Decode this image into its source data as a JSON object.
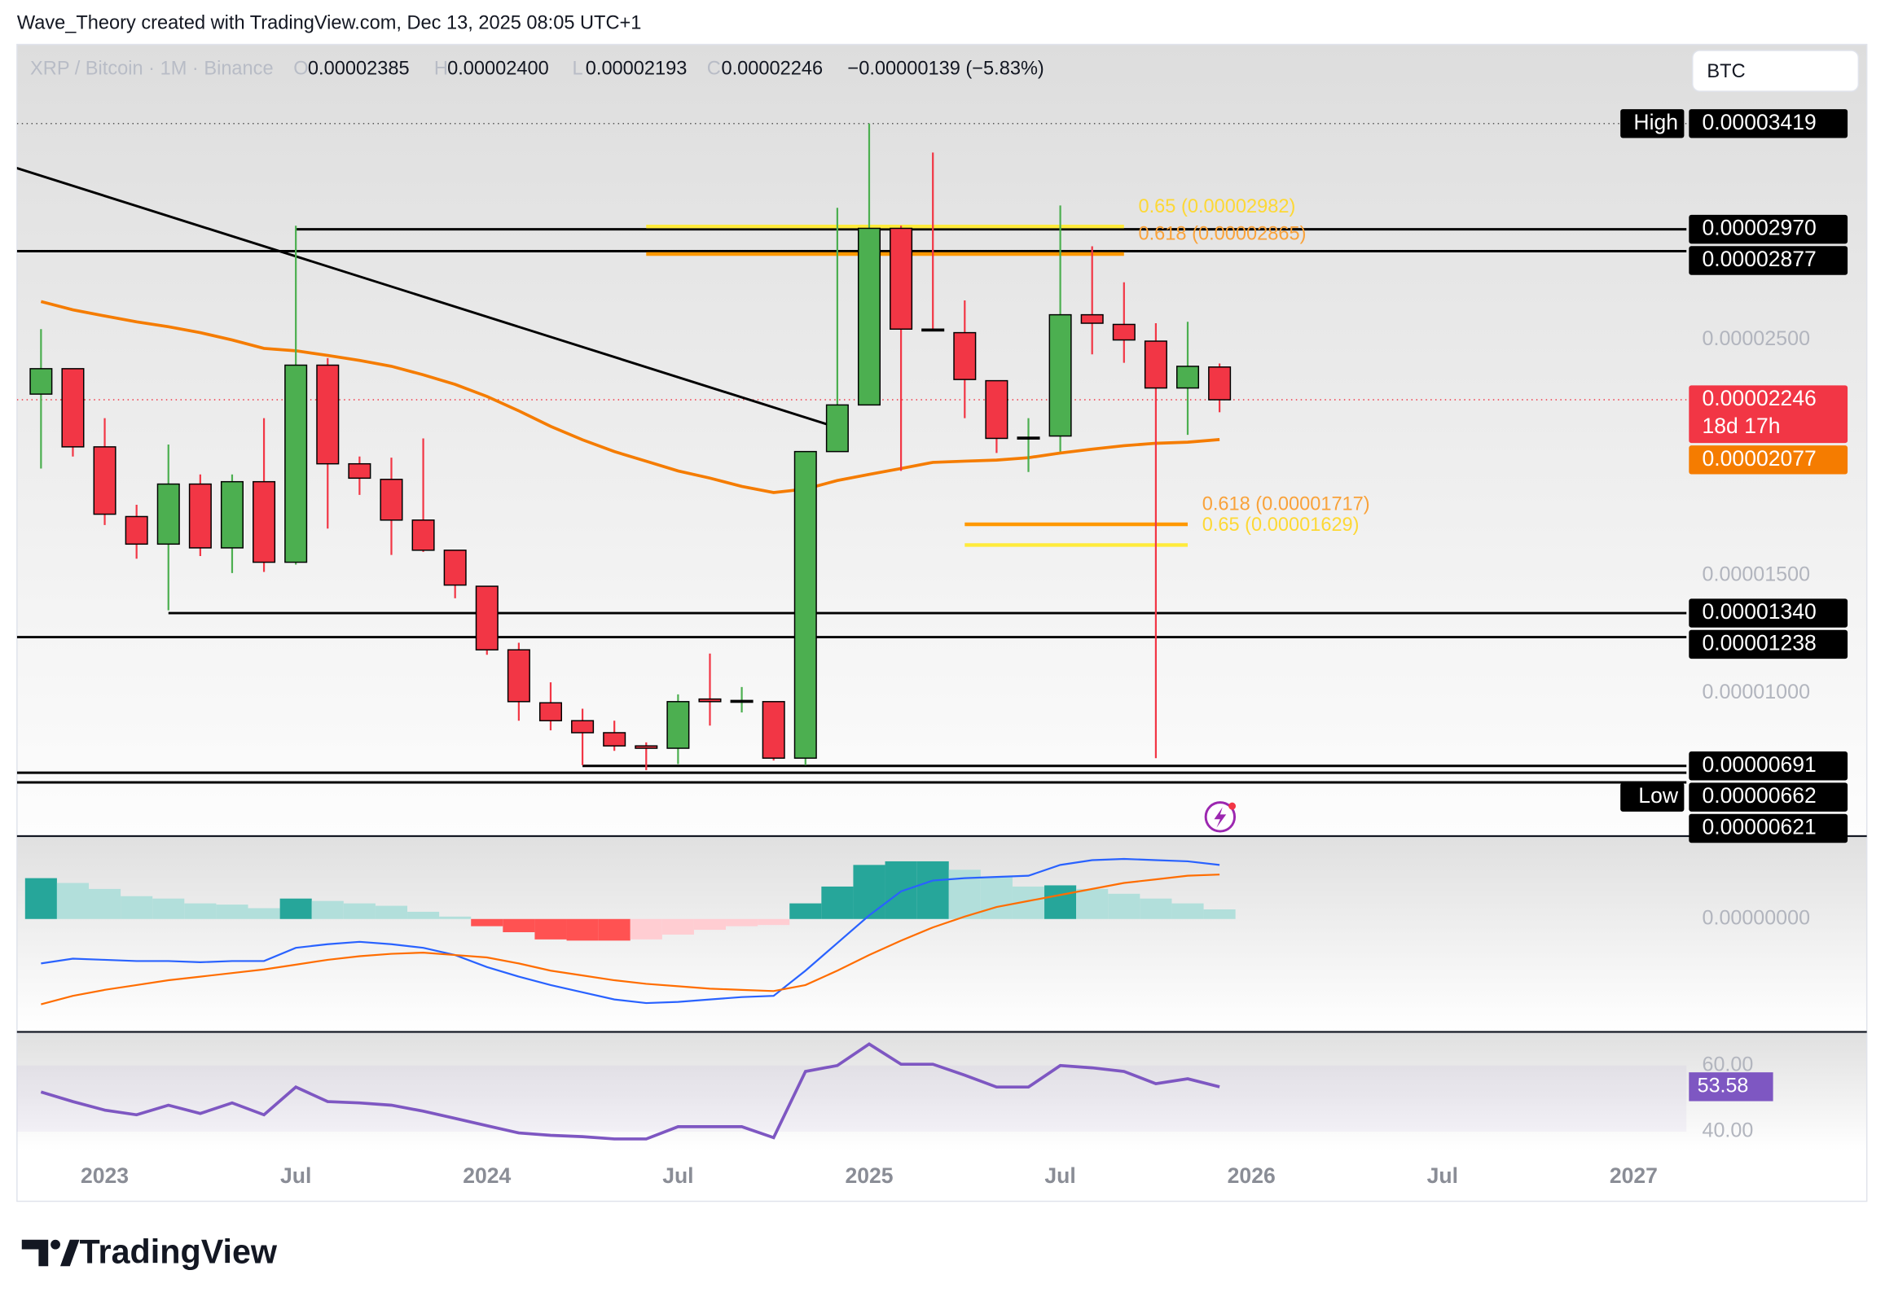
{
  "header": {
    "attribution": "Wave_Theory created with TradingView.com, Dec 13, 2025 08:05 UTC+1"
  },
  "chart_data": {
    "type": "candlestick",
    "symbol": "XRP / Bitcoin · 1M · Binance",
    "legend": {
      "o_key": "O",
      "open": "0.00002385",
      "h_key": "H",
      "high": "0.00002400",
      "l_key": "L",
      "low": "0.00002193",
      "c_key": "C",
      "close": "0.00002246",
      "change": "−0.00000139 (−5.83%)"
    },
    "currency": "BTC",
    "x": [
      "2022-11",
      "2022-12",
      "2023-01",
      "2023-02",
      "2023-03",
      "2023-04",
      "2023-05",
      "2023-06",
      "2023-07",
      "2023-08",
      "2023-09",
      "2023-10",
      "2023-11",
      "2023-12",
      "2024-01",
      "2024-02",
      "2024-03",
      "2024-04",
      "2024-05",
      "2024-06",
      "2024-07",
      "2024-08",
      "2024-09",
      "2024-10",
      "2024-11",
      "2024-12",
      "2025-01",
      "2025-02",
      "2025-03",
      "2025-04",
      "2025-05",
      "2025-06",
      "2025-07",
      "2025-08",
      "2025-09",
      "2025-10",
      "2025-11",
      "2025-12"
    ],
    "open": [
      2.27e-05,
      2.378e-05,
      2.046e-05,
      1.75e-05,
      1.633e-05,
      1.888e-05,
      1.617e-05,
      1.898e-05,
      1.556e-05,
      2.393e-05,
      1.974e-05,
      1.908e-05,
      1.735e-05,
      1.607e-05,
      1.454e-05,
      1.184e-05,
      9.59e-06,
      8.83e-06,
      8.32e-06,
      7.76e-06,
      7.66e-06,
      9.75e-06,
      9.64e-06,
      9.64e-06,
      7.24e-06,
      2.026e-05,
      2.224e-05,
      2.974e-05,
      2.546e-05,
      2.531e-05,
      2.327e-05,
      2.082e-05,
      2.092e-05,
      2.607e-05,
      2.566e-05,
      2.495e-05,
      2.296e-05,
      2.385e-05
    ],
    "high": [
      2.546e-05,
      2.378e-05,
      2.168e-05,
      1.8e-05,
      2.056e-05,
      1.929e-05,
      1.929e-05,
      2.168e-05,
      2.985e-05,
      2.423e-05,
      2.005e-05,
      2e-05,
      2.082e-05,
      1.607e-05,
      1.454e-05,
      1.214e-05,
      1.046e-05,
      9.34e-06,
      8.83e-06,
      7.91e-06,
      9.95e-06,
      1.168e-05,
      1.026e-05,
      9.64e-06,
      2.026e-05,
      3.061e-05,
      3.419e-05,
      2.985e-05,
      3.296e-05,
      2.668e-05,
      2.327e-05,
      2.168e-05,
      3.071e-05,
      2.898e-05,
      2.745e-05,
      2.571e-05,
      2.577e-05,
      2.4e-05
    ],
    "low": [
      1.954e-05,
      2.005e-05,
      1.714e-05,
      1.571e-05,
      1.352e-05,
      1.582e-05,
      1.51e-05,
      1.515e-05,
      1.546e-05,
      1.699e-05,
      1.842e-05,
      1.587e-05,
      1.6e-05,
      1.403e-05,
      1.163e-05,
      8.83e-06,
      8.42e-06,
      6.94e-06,
      7.55e-06,
      6.73e-06,
      6.99e-06,
      8.62e-06,
      9.18e-06,
      7.14e-06,
      6.94e-06,
      2.026e-05,
      2.224e-05,
      1.944e-05,
      2.541e-05,
      2.168e-05,
      2.02e-05,
      1.939e-05,
      2.026e-05,
      2.439e-05,
      2.403e-05,
      7.24e-06,
      2.097e-05,
      2.193e-05
    ],
    "close": [
      2.378e-05,
      2.046e-05,
      1.76e-05,
      1.633e-05,
      1.888e-05,
      1.617e-05,
      1.898e-05,
      1.556e-05,
      2.393e-05,
      1.974e-05,
      1.913e-05,
      1.735e-05,
      1.607e-05,
      1.459e-05,
      1.184e-05,
      9.64e-06,
      8.83e-06,
      8.32e-06,
      7.76e-06,
      7.66e-06,
      9.64e-06,
      9.64e-06,
      9.69e-06,
      7.24e-06,
      2.026e-05,
      2.224e-05,
      2.974e-05,
      2.546e-05,
      2.541e-05,
      2.332e-05,
      2.082e-05,
      2.087e-05,
      2.607e-05,
      2.571e-05,
      2.5e-05,
      2.296e-05,
      2.388e-05,
      2.246e-05
    ],
    "up_color": "#4caf50",
    "down_color": "#f23645",
    "flat_color": "#000000",
    "ylim": [
      3.98e-06,
      3.755e-05
    ],
    "yticks": [
      {
        "value": 1e-05,
        "label": "0.00001000"
      },
      {
        "value": 1.5e-05,
        "label": "0.00001500"
      },
      {
        "value": 2.5e-05,
        "label": "0.00002500"
      }
    ],
    "xticks": [
      {
        "value": "2023-01",
        "label": "2023"
      },
      {
        "value": "2023-07",
        "label": "Jul"
      },
      {
        "value": "2024-01",
        "label": "2024"
      },
      {
        "value": "2024-07",
        "label": "Jul"
      },
      {
        "value": "2025-01",
        "label": "2025"
      },
      {
        "value": "2025-07",
        "label": "Jul"
      },
      {
        "value": "2026-01",
        "label": "2026"
      },
      {
        "value": "2026-07",
        "label": "Jul"
      },
      {
        "value": "2027-01",
        "label": "2027"
      }
    ],
    "ma": {
      "color": "#f57c00",
      "values": [
        2.663e-05,
        2.628e-05,
        2.602e-05,
        2.577e-05,
        2.556e-05,
        2.531e-05,
        2.5e-05,
        2.464e-05,
        2.454e-05,
        2.434e-05,
        2.413e-05,
        2.388e-05,
        2.352e-05,
        2.311e-05,
        2.26e-05,
        2.199e-05,
        2.133e-05,
        2.076e-05,
        2.026e-05,
        1.985e-05,
        1.944e-05,
        1.913e-05,
        1.878e-05,
        1.852e-05,
        1.867e-05,
        1.903e-05,
        1.929e-05,
        1.954e-05,
        1.98e-05,
        1.985e-05,
        1.99e-05,
        2e-05,
        2.02e-05,
        2.036e-05,
        2.051e-05,
        2.061e-05,
        2.066e-05,
        2.077e-05
      ]
    },
    "trendline": {
      "color": "#000000",
      "x": [
        "2022-10",
        "2024-12"
      ],
      "values": [
        3.24e-05,
        2.128e-05
      ]
    },
    "levels": [
      {
        "value": 2.97e-05,
        "from": "2023-07"
      },
      {
        "value": 2.877e-05,
        "from": "2022-10"
      },
      {
        "value": 1.34e-05,
        "from": "2023-03"
      },
      {
        "value": 1.238e-05,
        "from": "2022-10"
      },
      {
        "value": 6.91e-06,
        "from": "2024-04"
      },
      {
        "value": 6.62e-06,
        "from": "2022-10"
      },
      {
        "value": 6.21e-06,
        "from": "2022-10"
      }
    ],
    "fib_levels": [
      {
        "label": "0.65 (0.00002982)",
        "value": 2.982e-05,
        "color": "#ffeb3b",
        "text_color": "#fdd835",
        "from": "2024-06",
        "to": "2025-09"
      },
      {
        "label": "0.618 (0.00002865)",
        "value": 2.865e-05,
        "color": "#ff9800",
        "text_color": "#f9a23a",
        "from": "2024-06",
        "to": "2025-09"
      },
      {
        "label": "0.618 (0.00001717)",
        "value": 1.717e-05,
        "color": "#ff9800",
        "text_color": "#f9a23a",
        "from": "2025-04",
        "to": "2025-11"
      },
      {
        "label": "0.65 (0.00001629)",
        "value": 1.629e-05,
        "color": "#ffeb3b",
        "text_color": "#fdd835",
        "from": "2025-04",
        "to": "2025-11"
      }
    ],
    "price_labels": [
      {
        "value": 3.419e-05,
        "label": "0.00003419",
        "tag": "High",
        "color": "#000000",
        "line_style": "dotted",
        "line_color": "#555555"
      },
      {
        "value": 2.97e-05,
        "label": "0.00002970",
        "color": "#000000"
      },
      {
        "value": 2.877e-05,
        "label": "0.00002877",
        "color": "#000000"
      },
      {
        "value": 2.246e-05,
        "label": "0.00002246",
        "countdown": "18d 17h",
        "color": "#f23645",
        "line_style": "dotted",
        "line_color": "#f23645"
      },
      {
        "value": 2.077e-05,
        "label": "0.00002077",
        "color": "#f57c00"
      },
      {
        "value": 1.34e-05,
        "label": "0.00001340",
        "color": "#000000"
      },
      {
        "value": 1.238e-05,
        "label": "0.00001238",
        "color": "#000000"
      },
      {
        "value": 6.91e-06,
        "label": "0.00000691",
        "color": "#000000"
      },
      {
        "value": 6.62e-06,
        "label": "0.00000662",
        "tag": "Low",
        "color": "#000000"
      },
      {
        "value": 6.21e-06,
        "label": "0.00000621",
        "color": "#000000"
      }
    ],
    "macd": {
      "ylim": [
        -1.86e-06,
        1.36e-06
      ],
      "yticks": [
        {
          "value": 0,
          "label": "0.00000000"
        }
      ],
      "histogram": [
        6.8e-07,
        6e-07,
        5e-07,
        3.8e-07,
        3.4e-07,
        2.6e-07,
        2.4e-07,
        1.8e-07,
        3.4e-07,
        3e-07,
        2.6e-07,
        2.2e-07,
        1.2e-07,
        4e-08,
        -1.2e-07,
        -2.2e-07,
        -3.4e-07,
        -3.6e-07,
        -3.6e-07,
        -3.4e-07,
        -2.6e-07,
        -1.8e-07,
        -1.2e-07,
        -1e-07,
        2.6e-07,
        5.4e-07,
        9e-07,
        9.6e-07,
        9.6e-07,
        8.2e-07,
        7e-07,
        5.4e-07,
        5.6e-07,
        5e-07,
        4.2e-07,
        3.4e-07,
        2.6e-07,
        1.6e-07
      ],
      "hist_colors": [
        "#26a69a",
        "#b2dfdb",
        "#ff5252",
        "#ffcdd2"
      ],
      "macd_line": {
        "color": "#2962ff",
        "values": [
          -7.4e-07,
          -6.6e-07,
          -6.8e-07,
          -7e-07,
          -7e-07,
          -7.2e-07,
          -7e-07,
          -7e-07,
          -4.8e-07,
          -4.2e-07,
          -3.8e-07,
          -4.2e-07,
          -4.8e-07,
          -6e-07,
          -8e-07,
          -9.6e-07,
          -1.1e-06,
          -1.22e-06,
          -1.34e-06,
          -1.4e-06,
          -1.38e-06,
          -1.34e-06,
          -1.3e-06,
          -1.28e-06,
          -8.6e-07,
          -4e-07,
          6e-08,
          4.6e-07,
          6.4e-07,
          6.8e-07,
          7e-07,
          7.2e-07,
          9e-07,
          9.8e-07,
          1e-06,
          9.8e-07,
          9.6e-07,
          9e-07
        ]
      },
      "signal_line": {
        "color": "#ff6d00",
        "values": [
          -1.42e-06,
          -1.28e-06,
          -1.18e-06,
          -1.1e-06,
          -1.02e-06,
          -9.6e-07,
          -9e-07,
          -8.4e-07,
          -7.6e-07,
          -6.8e-07,
          -6.2e-07,
          -5.8e-07,
          -5.6e-07,
          -6e-07,
          -6.4e-07,
          -7.4e-07,
          -8.6e-07,
          -9.4e-07,
          -1.02e-06,
          -1.08e-06,
          -1.12e-06,
          -1.16e-06,
          -1.18e-06,
          -1.2e-06,
          -1.1e-06,
          -8.6e-07,
          -6e-07,
          -3.6e-07,
          -1.4e-07,
          4e-08,
          2e-07,
          3e-07,
          4e-07,
          5e-07,
          6e-07,
          6.6e-07,
          7.2e-07,
          7.4e-07
        ]
      }
    },
    "rsi": {
      "ylim": [
        34.2,
        69.8
      ],
      "yticks": [
        {
          "value": 60,
          "label": "60.00"
        },
        {
          "value": 40,
          "label": "40.00"
        }
      ],
      "color": "#7e57c2",
      "values": [
        52.0,
        49.1,
        46.5,
        45.1,
        48.0,
        45.5,
        48.7,
        45.1,
        53.5,
        49.1,
        48.7,
        48.0,
        46.2,
        44.0,
        41.8,
        39.6,
        38.9,
        38.5,
        37.8,
        37.8,
        41.5,
        41.5,
        41.5,
        38.2,
        58.2,
        60.0,
        66.5,
        60.4,
        60.4,
        57.1,
        53.5,
        53.5,
        60.0,
        59.3,
        58.2,
        54.5,
        56.0,
        53.58
      ]
    }
  },
  "footer": {
    "logo": "TradingView"
  }
}
